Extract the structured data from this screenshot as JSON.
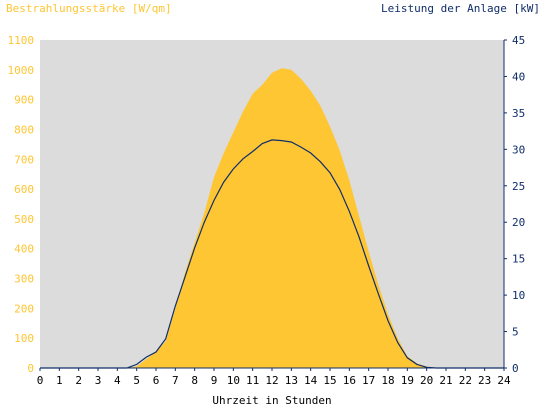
{
  "chart_data": {
    "type": "area",
    "title_left": "Bestrahlungsstärke [W/qm]",
    "title_right": "Leistung der Anlage [kW]",
    "xlabel": "Uhrzeit in Stunden",
    "xlim": [
      0,
      24
    ],
    "ylim_left": [
      0,
      1100
    ],
    "ylim_right": [
      0,
      45
    ],
    "x_ticks": [
      "0",
      "1",
      "2",
      "3",
      "4",
      "5",
      "6",
      "7",
      "8",
      "9",
      "10",
      "11",
      "12",
      "13",
      "14",
      "15",
      "16",
      "17",
      "18",
      "19",
      "20",
      "21",
      "22",
      "23",
      "24"
    ],
    "y_ticks_left": [
      "0",
      "100",
      "200",
      "300",
      "400",
      "500",
      "600",
      "700",
      "800",
      "900",
      "1000",
      "1100"
    ],
    "y_ticks_right": [
      "0",
      "5",
      "10",
      "15",
      "20",
      "25",
      "30",
      "35",
      "40",
      "45"
    ],
    "colors": {
      "area": "#ffc633",
      "line": "#102e6a",
      "plot_bg": "#dcdcdc",
      "axis": "#102e6a"
    },
    "series": [
      {
        "name": "Bestrahlungsstärke",
        "axis": "left",
        "x": [
          0,
          4.5,
          5,
          5.5,
          6,
          6.5,
          7,
          7.5,
          8,
          8.5,
          9,
          9.5,
          10,
          10.5,
          11,
          11.5,
          12,
          12.5,
          13,
          13.5,
          14,
          14.5,
          15,
          15.5,
          16,
          16.5,
          17,
          17.5,
          18,
          18.5,
          19,
          19.5,
          20,
          20.5,
          21,
          24
        ],
        "values": [
          0,
          0,
          5,
          30,
          55,
          90,
          200,
          320,
          420,
          520,
          640,
          720,
          790,
          860,
          920,
          950,
          990,
          1005,
          1000,
          970,
          930,
          880,
          810,
          730,
          630,
          510,
          390,
          280,
          180,
          100,
          40,
          15,
          5,
          0,
          0,
          0
        ]
      },
      {
        "name": "Leistung der Anlage",
        "axis": "right",
        "x": [
          0,
          4.5,
          5,
          5.5,
          6,
          6.5,
          7,
          7.5,
          8,
          8.5,
          9,
          9.5,
          10,
          10.5,
          11,
          11.5,
          12,
          12.5,
          13,
          13.5,
          14,
          14.5,
          15,
          15.5,
          16,
          16.5,
          17,
          17.5,
          18,
          18.5,
          19,
          19.5,
          20,
          20.5,
          21,
          24
        ],
        "values": [
          0,
          0,
          0.5,
          1.5,
          2.2,
          4,
          8.5,
          12.5,
          16.5,
          20,
          23,
          25.5,
          27.3,
          28.7,
          29.7,
          30.8,
          31.3,
          31.2,
          31,
          30.3,
          29.5,
          28.3,
          26.8,
          24.5,
          21.5,
          18,
          14,
          10.2,
          6.5,
          3.5,
          1.4,
          0.5,
          0.1,
          0,
          0,
          0
        ]
      }
    ]
  }
}
